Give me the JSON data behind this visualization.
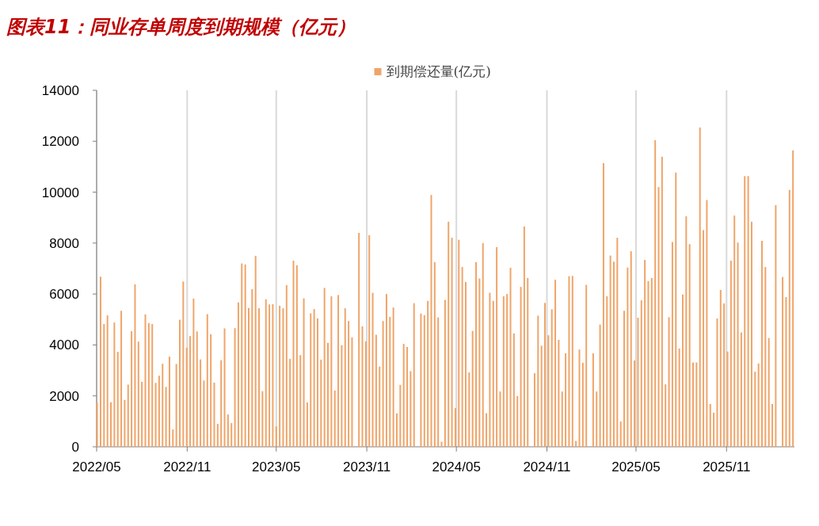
{
  "chart_data": {
    "type": "bar",
    "title": "图表11：同业存单周度到期规模（亿元）",
    "x": [
      "2022-05-02",
      "2022-05-09",
      "2022-05-16",
      "2022-05-23",
      "2022-05-30",
      "2022-06-06",
      "2022-06-13",
      "2022-06-20",
      "2022-06-27",
      "2022-07-04",
      "2022-07-11",
      "2022-07-18",
      "2022-07-25",
      "2022-08-01",
      "2022-08-08",
      "2022-08-15",
      "2022-08-22",
      "2022-08-29",
      "2022-09-05",
      "2022-09-12",
      "2022-09-19",
      "2022-09-26",
      "2022-10-03",
      "2022-10-10",
      "2022-10-17",
      "2022-10-24",
      "2022-10-31",
      "2022-11-07",
      "2022-11-14",
      "2022-11-21",
      "2022-11-28",
      "2022-12-05",
      "2022-12-12",
      "2022-12-19",
      "2022-12-26",
      "2023-01-02",
      "2023-01-09",
      "2023-01-16",
      "2023-01-23",
      "2023-01-30",
      "2023-02-06",
      "2023-02-13",
      "2023-02-20",
      "2023-02-27",
      "2023-03-06",
      "2023-03-13",
      "2023-03-20",
      "2023-03-27",
      "2023-04-03",
      "2023-04-10",
      "2023-04-17",
      "2023-04-24",
      "2023-05-01",
      "2023-05-08",
      "2023-05-15",
      "2023-05-22",
      "2023-05-29",
      "2023-06-05",
      "2023-06-12",
      "2023-06-19",
      "2023-06-26",
      "2023-07-03",
      "2023-07-10",
      "2023-07-17",
      "2023-07-24",
      "2023-07-31",
      "2023-08-07",
      "2023-08-14",
      "2023-08-21",
      "2023-08-28",
      "2023-09-04",
      "2023-09-11",
      "2023-09-18",
      "2023-09-25",
      "2023-10-02",
      "2023-10-09",
      "2023-10-16",
      "2023-10-23",
      "2023-10-30",
      "2023-11-06",
      "2023-11-13",
      "2023-11-20",
      "2023-11-27",
      "2023-12-04",
      "2023-12-11",
      "2023-12-18",
      "2023-12-25",
      "2024-01-01",
      "2024-01-08",
      "2024-01-15",
      "2024-01-22",
      "2024-01-29",
      "2024-02-05",
      "2024-02-12",
      "2024-02-19",
      "2024-02-26",
      "2024-03-04",
      "2024-03-11",
      "2024-03-18",
      "2024-03-25",
      "2024-04-01",
      "2024-04-08",
      "2024-04-15",
      "2024-04-22",
      "2024-04-29",
      "2024-05-06",
      "2024-05-13",
      "2024-05-20",
      "2024-05-27",
      "2024-06-03",
      "2024-06-10",
      "2024-06-17",
      "2024-06-24",
      "2024-07-01",
      "2024-07-08",
      "2024-07-15",
      "2024-07-22",
      "2024-07-29",
      "2024-08-05",
      "2024-08-12",
      "2024-08-19",
      "2024-08-26",
      "2024-09-02",
      "2024-09-09",
      "2024-09-16",
      "2024-09-23",
      "2024-09-30",
      "2024-10-07",
      "2024-10-14",
      "2024-10-21",
      "2024-10-28",
      "2024-11-04",
      "2024-11-11",
      "2024-11-18",
      "2024-11-25",
      "2024-12-02",
      "2024-12-09",
      "2024-12-16",
      "2024-12-23",
      "2024-12-30",
      "2025-01-06",
      "2025-01-13",
      "2025-01-20",
      "2025-01-27",
      "2025-02-03",
      "2025-02-10",
      "2025-02-17",
      "2025-02-24",
      "2025-03-03",
      "2025-03-10",
      "2025-03-17",
      "2025-03-24",
      "2025-03-31",
      "2025-04-07",
      "2025-04-14",
      "2025-04-21",
      "2025-04-28",
      "2025-05-05",
      "2025-05-12",
      "2025-05-19",
      "2025-05-26",
      "2025-06-02",
      "2025-06-09",
      "2025-06-16",
      "2025-06-23",
      "2025-06-30",
      "2025-07-07",
      "2025-07-14",
      "2025-07-21",
      "2025-07-28",
      "2025-08-04",
      "2025-08-11",
      "2025-08-18",
      "2025-08-25",
      "2025-09-01",
      "2025-09-08",
      "2025-09-15",
      "2025-09-22",
      "2025-09-29",
      "2025-10-06",
      "2025-10-13",
      "2025-10-20",
      "2025-10-27",
      "2025-11-03",
      "2025-11-10",
      "2025-11-17",
      "2025-11-24",
      "2025-12-01",
      "2025-12-08",
      "2025-12-15",
      "2025-12-22",
      "2025-12-29",
      "2026-01-05",
      "2026-01-12",
      "2026-01-19",
      "2026-01-26",
      "2026-02-02",
      "2026-02-09",
      "2026-02-16",
      "2026-02-23",
      "2026-03-02",
      "2026-03-09",
      "2026-03-16"
    ],
    "series": [
      {
        "name": "到期偿还量(亿元)",
        "color": "#efa56a",
        "values": [
          1730,
          6680,
          4820,
          5160,
          1750,
          4880,
          3730,
          5340,
          1840,
          2440,
          4540,
          6380,
          4130,
          2550,
          5200,
          4860,
          4820,
          2510,
          2790,
          3260,
          2350,
          3540,
          680,
          3250,
          4990,
          6490,
          3890,
          4350,
          5820,
          4530,
          3430,
          2600,
          5210,
          4420,
          2520,
          900,
          3400,
          4650,
          1270,
          930,
          4660,
          5670,
          7200,
          7160,
          5450,
          6190,
          7500,
          5440,
          2180,
          5790,
          5590,
          5600,
          800,
          5540,
          5440,
          6350,
          3450,
          7310,
          7130,
          3600,
          5830,
          1740,
          5240,
          5410,
          5040,
          3420,
          6240,
          4080,
          5910,
          2210,
          5960,
          3990,
          5440,
          4940,
          4300,
          0,
          8400,
          4730,
          4140,
          8310,
          6050,
          4400,
          3150,
          4940,
          6000,
          5100,
          5470,
          1310,
          2430,
          4040,
          3920,
          2970,
          5640,
          0,
          5230,
          5170,
          5730,
          9890,
          7250,
          5080,
          200,
          5770,
          8840,
          8210,
          1520,
          8130,
          7060,
          6470,
          2920,
          4550,
          7250,
          6610,
          8000,
          1320,
          6050,
          5730,
          7840,
          2170,
          5910,
          6000,
          7030,
          4450,
          1990,
          6280,
          8650,
          6630,
          0,
          2890,
          5150,
          3970,
          5650,
          4380,
          5400,
          6560,
          4200,
          2170,
          3670,
          6700,
          6710,
          230,
          3820,
          3300,
          6360,
          0,
          3670,
          2170,
          4800,
          11140,
          5910,
          7510,
          7270,
          8210,
          990,
          5340,
          7040,
          7680,
          3390,
          5070,
          5750,
          7340,
          6510,
          6630,
          12040,
          10200,
          11390,
          2450,
          5090,
          8040,
          10770,
          3860,
          5980,
          9050,
          7960,
          3310,
          3310,
          12540,
          8510,
          9690,
          1680,
          1340,
          5040,
          6160,
          5630,
          3740,
          7310,
          9080,
          8020,
          4490,
          10630,
          10630,
          8840,
          2950,
          3270,
          8090,
          7060,
          4270,
          1680,
          9490,
          0,
          6670,
          5880,
          10090,
          11640
        ]
      }
    ],
    "xlim": [
      "2022-05-01",
      "2026-03-19"
    ],
    "xticks": [
      {
        "value": "2022-05-01",
        "label": "2022/05"
      },
      {
        "value": "2022-11-01",
        "label": "2022/11"
      },
      {
        "value": "2023-05-01",
        "label": "2023/05"
      },
      {
        "value": "2023-11-01",
        "label": "2023/11"
      },
      {
        "value": "2024-05-01",
        "label": "2024/05"
      },
      {
        "value": "2024-11-01",
        "label": "2024/11"
      },
      {
        "value": "2025-05-01",
        "label": "2025/05"
      },
      {
        "value": "2025-11-01",
        "label": "2025/11"
      }
    ],
    "ylim": [
      0,
      14000
    ],
    "yticks": [
      0,
      2000,
      4000,
      6000,
      8000,
      10000,
      12000,
      14000
    ],
    "grid": "x",
    "legend": "top"
  }
}
